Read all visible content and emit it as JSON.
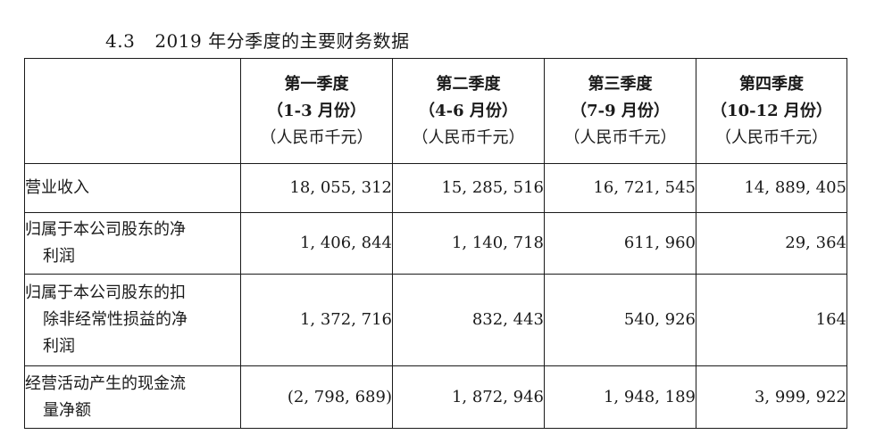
{
  "section": {
    "number": "4.3",
    "title": "2019 年分季度的主要财务数据"
  },
  "columns": [
    {
      "quarter": "第一季度",
      "months": "（1-3 月份）",
      "unit": "（人民币千元）"
    },
    {
      "quarter": "第二季度",
      "months": "（4-6 月份）",
      "unit": "（人民币千元）"
    },
    {
      "quarter": "第三季度",
      "months": "（7-9 月份）",
      "unit": "（人民币千元）"
    },
    {
      "quarter": "第四季度",
      "months": "（10-12 月份）",
      "unit": "（人民币千元）"
    }
  ],
  "rows": [
    {
      "label_lines": [
        "营业收入"
      ],
      "values": [
        "18, 055, 312",
        "15, 285, 516",
        "16, 721, 545",
        "14, 889, 405"
      ]
    },
    {
      "label_lines": [
        "归属于本公司股东的净",
        "利润"
      ],
      "values": [
        "1, 406, 844",
        "1, 140, 718",
        "611, 960",
        "29, 364"
      ]
    },
    {
      "label_lines": [
        "归属于本公司股东的扣",
        "除非经常性损益的净",
        "利润"
      ],
      "values": [
        "1, 372, 716",
        "832, 443",
        "540, 926",
        "164"
      ]
    },
    {
      "label_lines": [
        "经营活动产生的现金流",
        "量净额"
      ],
      "values": [
        "(2, 798, 689)",
        "1, 872, 946",
        "1, 948, 189",
        "3, 999, 922"
      ]
    }
  ]
}
